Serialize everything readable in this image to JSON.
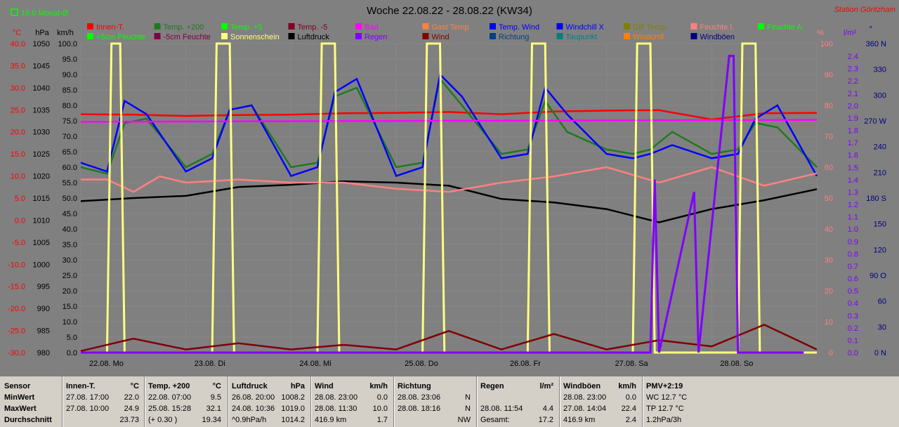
{
  "header": {
    "legend_note": "19.0 Monat-Ø",
    "title": "Woche 22.08.22 - 28.08.22 (KW34)",
    "station": "Station Göritzhain"
  },
  "legend": [
    {
      "label": "Innen-T.",
      "color": "#ff0000"
    },
    {
      "label": "Temp. +200",
      "color": "#1e7a1e"
    },
    {
      "label": "Temp. +5",
      "color": "#00ff00"
    },
    {
      "label": "Temp. -5",
      "color": "#800020"
    },
    {
      "label": "Bad",
      "color": "#ff00ff"
    },
    {
      "label": "Gast Temp",
      "color": "#ff8040"
    },
    {
      "label": "Temp. Wind",
      "color": "#0000ff"
    },
    {
      "label": "Windchill X",
      "color": "#0000ff"
    },
    {
      "label": "Diff Temp.",
      "color": "#808000"
    },
    {
      "label": "Feuchte I.",
      "color": "#ff8080"
    },
    {
      "label": "Feuchte A.",
      "color": "#00ff00"
    },
    {
      "label": "+5cm Feuchte",
      "color": "#00ff00"
    },
    {
      "label": "-5cm Feuchte",
      "color": "#800040"
    },
    {
      "label": "Sonnenschein",
      "color": "#ffff80"
    },
    {
      "label": "Luftdruck",
      "color": "#000000"
    },
    {
      "label": "Regen",
      "color": "#8000ff"
    },
    {
      "label": "Wind",
      "color": "#800000"
    },
    {
      "label": "Richtung",
      "color": "#004080"
    },
    {
      "label": "Taupunkt",
      "color": "#008080"
    },
    {
      "label": "Windchill",
      "color": "#ff8000"
    },
    {
      "label": "Windböen",
      "color": "#000080"
    }
  ],
  "axes": {
    "temp": {
      "unit": "°C",
      "ticks": [
        "40.0",
        "35.0",
        "30.0",
        "25.0",
        "20.0",
        "15.0",
        "10.0",
        "5.0",
        "0.0",
        "-5.0",
        "-10.0",
        "-15.0",
        "-20.0",
        "-25.0",
        "-30.0"
      ],
      "color": "#ff0000"
    },
    "pressure": {
      "unit": "hPa",
      "ticks": [
        "1050",
        "1045",
        "1040",
        "1035",
        "1030",
        "1025",
        "1020",
        "1015",
        "1010",
        "1005",
        "1000",
        "995",
        "990",
        "985",
        "980"
      ],
      "color": "#000000"
    },
    "wind": {
      "unit": "km/h",
      "ticks": [
        "100.0",
        "95.0",
        "90.0",
        "85.0",
        "80.0",
        "75.0",
        "70.0",
        "65.0",
        "60.0",
        "55.0",
        "50.0",
        "45.0",
        "40.0",
        "35.0",
        "30.0",
        "25.0",
        "20.0",
        "15.0",
        "10.0",
        "5.0",
        "0.0"
      ],
      "color": "#000000"
    },
    "humidity": {
      "unit": "%",
      "ticks": [
        "100",
        "90",
        "80",
        "70",
        "60",
        "50",
        "40",
        "30",
        "20",
        "10",
        "0"
      ],
      "color": "#ff8080"
    },
    "rain": {
      "unit": "l/m²",
      "ticks": [
        "2.4",
        "2.3",
        "2.2",
        "2.1",
        "2.0",
        "1.9",
        "1.8",
        "1.7",
        "1.6",
        "1.5",
        "1.4",
        "1.3",
        "1.2",
        "1.1",
        "1.0",
        "0.9",
        "0.8",
        "0.7",
        "0.6",
        "0.5",
        "0.4",
        "0.3",
        "0.2",
        "0.1",
        "0.0"
      ],
      "color": "#8000ff"
    },
    "direction": {
      "unit": "°",
      "ticks": [
        "360 N",
        "330",
        "300",
        "270 W",
        "240",
        "210",
        "180 S",
        "150",
        "120",
        "90 O",
        "60",
        "30",
        "0 N"
      ],
      "color": "#000080"
    },
    "days": [
      "22.08. Mo",
      "23.08. Di",
      "24.08. Mi",
      "25.08. Do",
      "26.08. Fr",
      "27.08. Sa",
      "28.08. So"
    ]
  },
  "chart_data": {
    "type": "line",
    "x_unit": "hours since 22.08. 00:00",
    "series": [
      {
        "name": "Innen-T.",
        "color": "#ff0000",
        "axis": "temp",
        "x": [
          0,
          12,
          24,
          36,
          48,
          60,
          72,
          84,
          96,
          108,
          120,
          132,
          144,
          156,
          168
        ],
        "y": [
          24.0,
          23.9,
          23.6,
          23.8,
          23.9,
          24.2,
          24.3,
          24.5,
          24.0,
          24.6,
          24.8,
          24.9,
          22.8,
          24.2,
          24.3
        ]
      },
      {
        "name": "Temp. +200",
        "color": "#1e7a1e",
        "axis": "temp",
        "x": [
          0,
          6,
          10,
          15,
          24,
          30,
          34,
          39,
          48,
          54,
          58,
          63,
          72,
          78,
          82,
          87,
          96,
          102,
          106,
          111,
          120,
          126,
          130,
          135,
          144,
          150,
          154,
          159,
          168
        ],
        "y": [
          12,
          10.5,
          22,
          23,
          12,
          15,
          25,
          26,
          12,
          13,
          28,
          30,
          12,
          13,
          32,
          26,
          15,
          16,
          27,
          20,
          16,
          15,
          16,
          20,
          15,
          16,
          22,
          21,
          12
        ]
      },
      {
        "name": "Temp. Wind",
        "color": "#0000ff",
        "axis": "temp",
        "x": [
          0,
          6,
          10,
          15,
          24,
          30,
          34,
          39,
          48,
          54,
          58,
          63,
          72,
          78,
          82,
          87,
          96,
          102,
          106,
          111,
          120,
          126,
          130,
          135,
          144,
          150,
          154,
          159,
          168
        ],
        "y": [
          13,
          11,
          27,
          24,
          11,
          14,
          25,
          26,
          10,
          12,
          29,
          32,
          10,
          12,
          33,
          28,
          14,
          15,
          30,
          24,
          15,
          14,
          15,
          17,
          14,
          15,
          23,
          26,
          10
        ]
      },
      {
        "name": "Luftdruck",
        "color": "#000000",
        "axis": "pressure",
        "x": [
          0,
          12,
          24,
          36,
          48,
          60,
          72,
          84,
          96,
          108,
          120,
          132,
          144,
          156,
          168
        ],
        "y": [
          1014.3,
          1015.0,
          1015.5,
          1017.5,
          1018.0,
          1018.8,
          1018.5,
          1017.8,
          1014.8,
          1014.0,
          1012.5,
          1009.5,
          1012.5,
          1014.5,
          1017.0
        ]
      },
      {
        "name": "Feuchte I.",
        "color": "#ff8080",
        "axis": "humidity",
        "x": [
          0,
          6,
          12,
          18,
          24,
          36,
          48,
          60,
          72,
          84,
          96,
          108,
          120,
          132,
          144,
          156,
          168
        ],
        "y": [
          56,
          56,
          52,
          57,
          55,
          56,
          55,
          55,
          53,
          52,
          55,
          57,
          60,
          55,
          60,
          54,
          58
        ]
      },
      {
        "name": "Bad",
        "color": "#ff00ff",
        "axis": "temp",
        "x": [
          0,
          168
        ],
        "y": [
          22.3,
          22.7
        ]
      },
      {
        "name": "Sonnenschein",
        "color": "#ffff80",
        "axis": "humidity",
        "x": [
          0,
          6,
          7,
          9,
          10,
          11,
          24,
          30,
          31,
          34,
          35,
          36,
          48,
          54,
          55,
          58,
          59,
          60,
          72,
          78,
          79,
          82,
          83,
          84,
          96,
          102,
          103,
          106,
          107,
          108,
          120,
          126,
          127,
          130,
          131,
          132,
          144,
          150,
          151,
          154,
          155,
          156,
          168
        ],
        "y": [
          0,
          0,
          100,
          100,
          0,
          0,
          0,
          0,
          100,
          100,
          0,
          0,
          0,
          0,
          100,
          100,
          0,
          0,
          0,
          0,
          100,
          100,
          0,
          0,
          0,
          0,
          100,
          100,
          0,
          0,
          0,
          0,
          100,
          100,
          0,
          0,
          0,
          0,
          100,
          100,
          0,
          0,
          0
        ]
      },
      {
        "name": "Wind",
        "color": "#800000",
        "axis": "wind",
        "x": [
          0,
          12,
          24,
          36,
          48,
          60,
          72,
          84,
          96,
          108,
          120,
          132,
          144,
          156,
          168
        ],
        "y": [
          0.5,
          4.5,
          1,
          3,
          1,
          2.5,
          1,
          7,
          1,
          6,
          1,
          4,
          2,
          9,
          1
        ]
      },
      {
        "name": "Regen",
        "color": "#8000ff",
        "axis": "rain",
        "x": [
          0,
          130,
          131,
          132,
          140,
          141,
          148,
          149,
          150,
          165
        ],
        "y": [
          0,
          0,
          1.4,
          0,
          1.3,
          0,
          2.4,
          2.4,
          0,
          0
        ]
      }
    ],
    "xlim": [
      0,
      168
    ],
    "grid": true
  },
  "stats": {
    "labels": {
      "sensor": "Sensor",
      "min": "MinWert",
      "max": "MaxWert",
      "avg": "Durchschnitt"
    },
    "blocks": [
      {
        "title": "Innen-T.",
        "unit": "°C",
        "min_time": "27.08.  17:00",
        "min_val": "22.0",
        "max_time": "27.08.  10:00",
        "max_val": "24.9",
        "avg_extra": "",
        "avg_val": "23.73"
      },
      {
        "title": "Temp. +200",
        "unit": "°C",
        "min_time": "22.08.  07:00",
        "min_val": "9.5",
        "max_time": "25.08.  15:28",
        "max_val": "32.1",
        "avg_extra": "(+ 0.30 )",
        "avg_val": "19.34"
      },
      {
        "title": "Luftdruck",
        "unit": "hPa",
        "min_time": "26.08.  20:00",
        "min_val": "1008.2",
        "max_time": "24.08.  10:36",
        "max_val": "1019.0",
        "avg_extra": "^0.9hPa/h",
        "avg_val": "1014.2"
      },
      {
        "title": "Wind",
        "unit": "km/h",
        "min_time": "28.08.  23:00",
        "min_val": "0.0",
        "max_time": "28.08.  11:30",
        "max_val": "10.0",
        "avg_extra": "416.9 km",
        "avg_val": "1.7"
      },
      {
        "title": "Richtung",
        "unit": "",
        "min_time": "28.08.  23:06",
        "min_val": "N",
        "max_time": "28.08.  18:16",
        "max_val": "N",
        "avg_extra": "",
        "avg_val": "NW"
      },
      {
        "title": "Regen",
        "unit": "l/m²",
        "min_time": "",
        "min_val": "",
        "max_time": "28.08.  11:54",
        "max_val": "4.4",
        "avg_extra": "Gesamt:",
        "avg_val": "17.2"
      },
      {
        "title": "Windböen",
        "unit": "km/h",
        "min_time": "28.08.  23:00",
        "min_val": "0.0",
        "max_time": "27.08.  14:04",
        "max_val": "22.4",
        "avg_extra": "416.9 km",
        "avg_val": "2.4"
      },
      {
        "title": "PMV+2:19",
        "unit": "",
        "min_time": "WC 12.7 °C",
        "min_val": "",
        "max_time": "TP 12.7 °C",
        "max_val": "",
        "avg_extra": "1.2hPa/3h",
        "avg_val": ""
      }
    ]
  }
}
